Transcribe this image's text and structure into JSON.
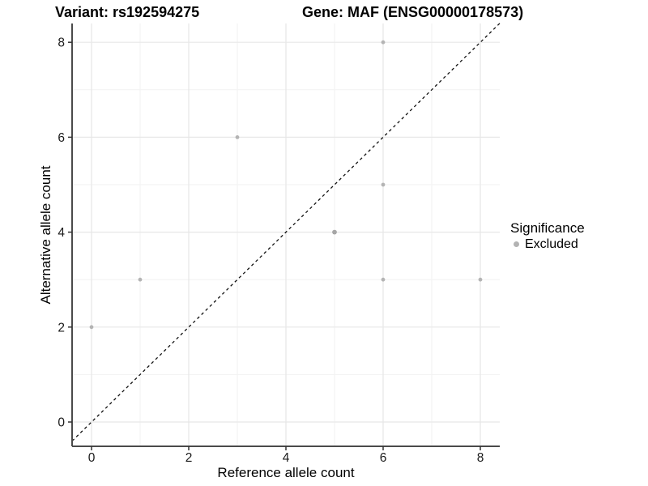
{
  "titles": {
    "variant": "Variant: rs192594275",
    "gene": "Gene: MAF (ENSG00000178573)"
  },
  "axes": {
    "x_label": "Reference allele count",
    "y_label": "Alternative allele count"
  },
  "legend": {
    "title": "Significance",
    "items": [
      {
        "label": "Excluded",
        "color": "#b3b3b3"
      }
    ]
  },
  "colors": {
    "background": "#ffffff",
    "grid_major": "#e7e7e7",
    "grid_minor": "#f2f2f2",
    "axis_line": "#4a4a4a",
    "tick_mark": "#333333",
    "tick_label": "#1a1a1a",
    "point_default": "#b4b4b4",
    "point_emphasis": "#a6a6a6",
    "identity_line": "#111111"
  },
  "chart_data": {
    "type": "scatter",
    "title": "Variant: rs192594275   |   Gene: MAF (ENSG00000178573)",
    "xlabel": "Reference allele count",
    "ylabel": "Alternative allele count",
    "xlim": [
      -0.4,
      8.4
    ],
    "ylim": [
      -0.51,
      8.4
    ],
    "x_ticks": [
      0,
      2,
      4,
      6,
      8
    ],
    "y_ticks": [
      0,
      2,
      4,
      6,
      8
    ],
    "grid": "major and minor gridlines, white panel",
    "legend_position": "right",
    "series": [
      {
        "name": "Excluded",
        "color": "#b4b4b4",
        "point_radius": 2.4,
        "points": [
          {
            "x": 0,
            "y": 2
          },
          {
            "x": 1,
            "y": 3
          },
          {
            "x": 3,
            "y": 6
          },
          {
            "x": 5,
            "y": 4,
            "radius": 2.9,
            "color": "#a6a6a6"
          },
          {
            "x": 6,
            "y": 3
          },
          {
            "x": 6,
            "y": 5
          },
          {
            "x": 6,
            "y": 8
          },
          {
            "x": 8,
            "y": 3
          }
        ]
      }
    ],
    "reference_line": {
      "kind": "identity y=x",
      "style": "dashed",
      "color": "#111111"
    }
  }
}
